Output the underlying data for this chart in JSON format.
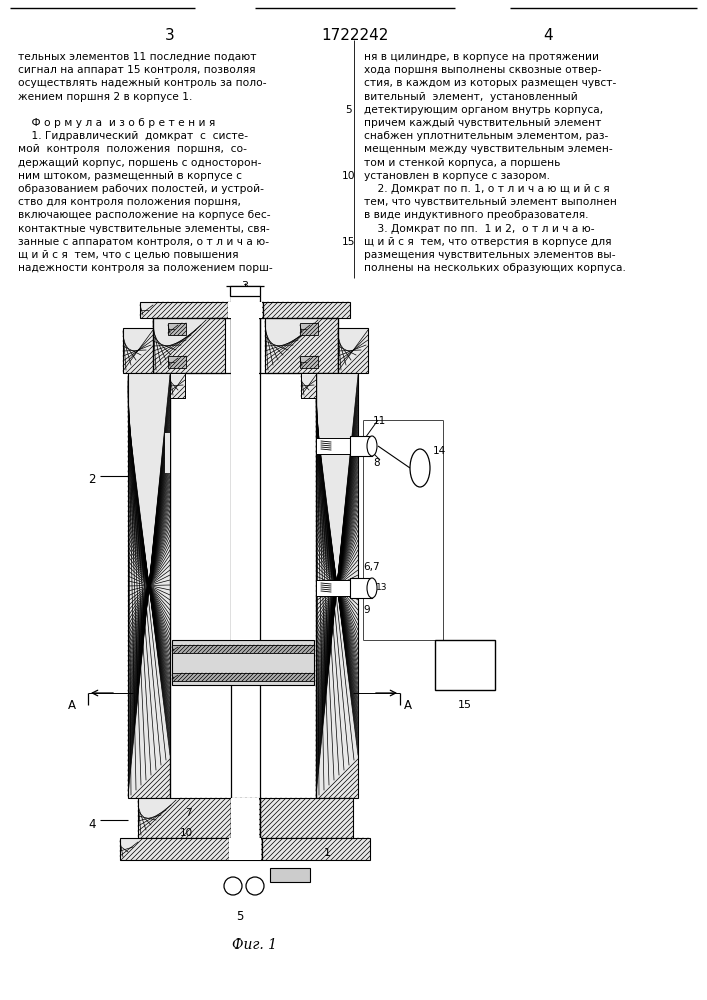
{
  "page_number_left": "3",
  "patent_number": "1722242",
  "page_number_right": "4",
  "left_column_text": [
    "тельных элементов 11 последние подают",
    "сигнал на аппарат 15 контроля, позволяя",
    "осуществлять надежный контроль за поло-",
    "жением поршня 2 в корпусе 1.",
    "",
    "    Ф о р м у л а  и з о б р е т е н и я",
    "    1. Гидравлический  домкрат  с  систе-",
    "мой  контроля  положения  поршня,  со-",
    "держащий корпус, поршень с односторон-",
    "ним штоком, размещенный в корпусе с",
    "образованием рабочих полостей, и устрой-",
    "ство для контроля положения поршня,",
    "включающее расположение на корпусе бес-",
    "контактные чувствительные элементы, свя-",
    "занные с аппаратом контроля, о т л и ч а ю-",
    "щ и й с я  тем, что с целью повышения",
    "надежности контроля за положением порш-"
  ],
  "right_column_text": [
    "ня в цилиндре, в корпусе на протяжении",
    "хода поршня выполнены сквозные отвер-",
    "стия, в каждом из которых размещен чувст-",
    "вительный  элемент,  установленный",
    "детектирующим органом внутрь корпуса,",
    "причем каждый чувствительный элемент",
    "снабжен уплотнительным элементом, раз-",
    "мещенным между чувствительным элемен-",
    "том и стенкой корпуса, а поршень",
    "установлен в корпусе с зазором.",
    "    2. Домкрат по п. 1, о т л и ч а ю щ и й с я",
    "тем, что чувствительный элемент выполнен",
    "в виде индуктивного преобразователя.",
    "    3. Домкрат по пп.  1 и 2,  о т л и ч а ю-",
    "щ и й с я  тем, что отверстия в корпусе для",
    "размещения чувствительных элементов вы-",
    "полнены на нескольких образующих корпуса."
  ],
  "line_number_5": "5",
  "line_number_10": "10",
  "line_number_15": "15",
  "figure_caption": "Фиг. 1",
  "bg_color": "#ffffff",
  "text_color": "#000000"
}
